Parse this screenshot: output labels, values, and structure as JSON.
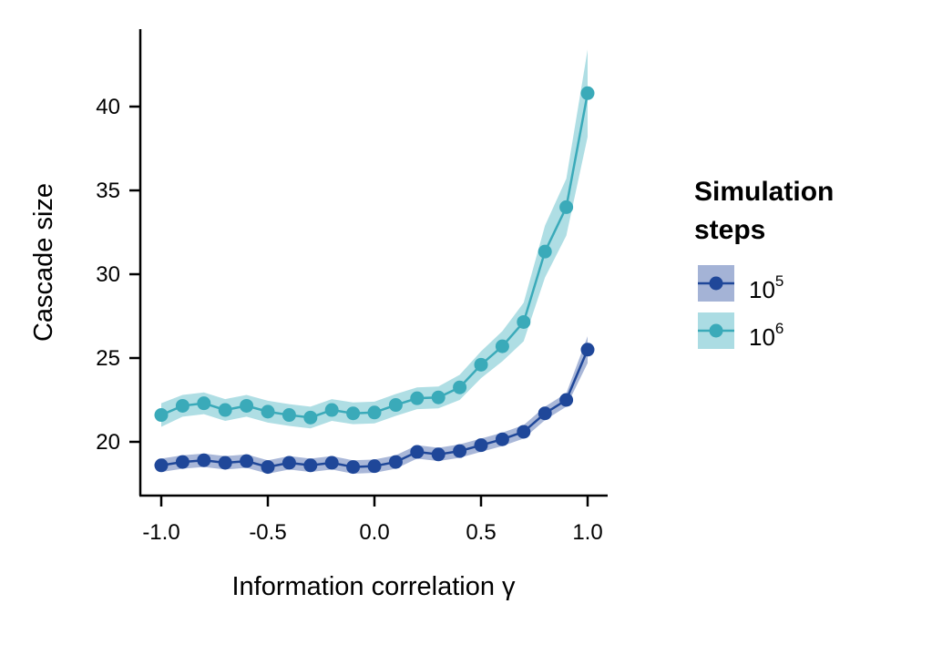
{
  "chart_data": {
    "type": "line",
    "xlabel": "Information correlation γ",
    "ylabel": "Cascade size",
    "xlim": [
      -1.1,
      1.1
    ],
    "ylim": [
      16.8,
      45
    ],
    "x_ticks": [
      "-1.0",
      "-0.5",
      "0.0",
      "0.5",
      "1.0"
    ],
    "x_tick_values": [
      -1.0,
      -0.5,
      0.0,
      0.5,
      1.0
    ],
    "y_ticks": [
      "20",
      "25",
      "30",
      "35",
      "40"
    ],
    "y_tick_values": [
      20,
      25,
      30,
      35,
      40
    ],
    "grid": false,
    "legend": {
      "title_line1": "Simulation",
      "title_line2": "steps",
      "placement": "right"
    },
    "x": [
      -1.0,
      -0.9,
      -0.8,
      -0.7,
      -0.6,
      -0.5,
      -0.4,
      -0.3,
      -0.2,
      -0.1,
      0.0,
      0.1,
      0.2,
      0.3,
      0.4,
      0.5,
      0.6,
      0.7,
      0.8,
      0.9,
      1.0
    ],
    "series": [
      {
        "name": "10^5",
        "label_base": "10",
        "label_exp": "5",
        "color": "#1f4799",
        "band_color": "#a4b3d6",
        "values": [
          18.6,
          18.8,
          18.9,
          18.75,
          18.85,
          18.5,
          18.75,
          18.6,
          18.75,
          18.5,
          18.55,
          18.8,
          19.4,
          19.25,
          19.45,
          19.8,
          20.15,
          20.6,
          21.7,
          22.5,
          25.5
        ],
        "lower": [
          18.2,
          18.4,
          18.5,
          18.35,
          18.45,
          18.1,
          18.35,
          18.2,
          18.35,
          18.1,
          18.15,
          18.4,
          19.0,
          18.85,
          19.05,
          19.4,
          19.75,
          20.2,
          21.3,
          22.1,
          24.7
        ],
        "upper": [
          19.0,
          19.2,
          19.3,
          19.15,
          19.25,
          18.9,
          19.15,
          19.0,
          19.15,
          18.9,
          18.95,
          19.2,
          19.8,
          19.65,
          19.85,
          20.2,
          20.55,
          21.0,
          22.1,
          22.9,
          26.3
        ]
      },
      {
        "name": "10^6",
        "label_base": "10",
        "label_exp": "6",
        "color": "#3aaab9",
        "band_color": "#abdce3",
        "values": [
          21.6,
          22.15,
          22.3,
          21.9,
          22.15,
          21.8,
          21.6,
          21.45,
          21.9,
          21.7,
          21.75,
          22.2,
          22.6,
          22.65,
          23.25,
          24.6,
          25.7,
          27.15,
          31.35,
          34.0,
          40.8
        ],
        "lower": [
          20.9,
          21.5,
          21.65,
          21.25,
          21.5,
          21.15,
          20.95,
          20.8,
          21.25,
          21.05,
          21.1,
          21.55,
          21.95,
          22.0,
          22.5,
          23.8,
          24.8,
          26.0,
          29.8,
          32.3,
          38.2
        ],
        "upper": [
          22.3,
          22.8,
          22.95,
          22.55,
          22.8,
          22.45,
          22.25,
          22.1,
          22.55,
          22.35,
          22.4,
          22.85,
          23.25,
          23.3,
          24.0,
          25.4,
          26.6,
          28.3,
          32.9,
          35.7,
          43.4
        ]
      }
    ]
  }
}
